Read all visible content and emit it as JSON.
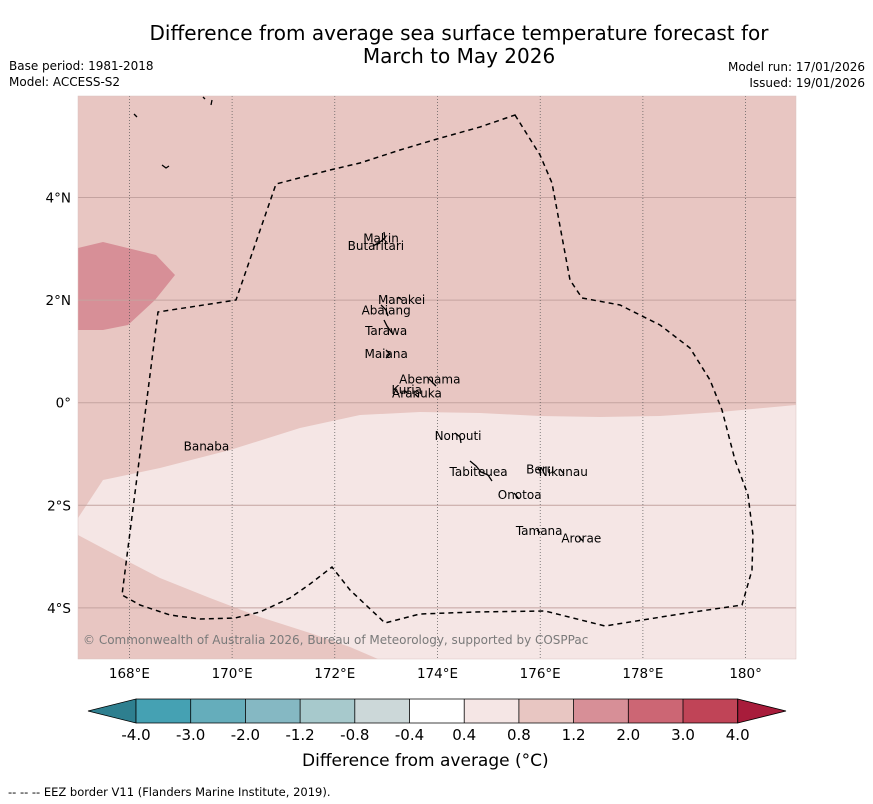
{
  "title_line1": "Difference from average sea surface temperature forecast for",
  "title_line2": "March to May 2026",
  "base_period": "Base period: 1981-2018",
  "model": "Model: ACCESS-S2",
  "model_run": "Model run: 17/01/2026",
  "issued": "Issued: 19/01/2026",
  "copyright": "© Commonwealth of Australia 2026, Bureau of Meteorology, supported by COSPPac",
  "lon_ticks": [
    "168°E",
    "170°E",
    "172°E",
    "174°E",
    "176°E",
    "178°E",
    "180°"
  ],
  "lat_ticks": [
    "4°N",
    "2°N",
    "0°",
    "2°S",
    "4°S"
  ],
  "islands": [
    {
      "name": "Makin",
      "lon": 172.9,
      "lat": 3.2
    },
    {
      "name": "Butaritari",
      "lon": 172.8,
      "lat": 3.05
    },
    {
      "name": "Marakei",
      "lon": 173.3,
      "lat": 2.0
    },
    {
      "name": "Abaiang",
      "lon": 173.0,
      "lat": 1.8
    },
    {
      "name": "Tarawa",
      "lon": 173.0,
      "lat": 1.4
    },
    {
      "name": "Maiana",
      "lon": 173.0,
      "lat": 0.95
    },
    {
      "name": "Abemama",
      "lon": 173.85,
      "lat": 0.45
    },
    {
      "name": "Kuria",
      "lon": 173.4,
      "lat": 0.25
    },
    {
      "name": "Aranuka",
      "lon": 173.6,
      "lat": 0.18
    },
    {
      "name": "Nonouti",
      "lon": 174.4,
      "lat": -0.65
    },
    {
      "name": "Banaba",
      "lon": 169.5,
      "lat": -0.85
    },
    {
      "name": "Tabiteuea",
      "lon": 174.8,
      "lat": -1.35
    },
    {
      "name": "Beru",
      "lon": 176.0,
      "lat": -1.3
    },
    {
      "name": "Nikunau",
      "lon": 176.45,
      "lat": -1.35
    },
    {
      "name": "Onotoa",
      "lon": 175.6,
      "lat": -1.8
    },
    {
      "name": "Tamana",
      "lon": 175.98,
      "lat": -2.5
    },
    {
      "name": "Arorae",
      "lon": 176.8,
      "lat": -2.65
    }
  ],
  "colorbar": {
    "tick_labels": [
      "-4.0",
      "-3.0",
      "-2.0",
      "-1.2",
      "-0.8",
      "-0.4",
      "0.4",
      "0.8",
      "1.2",
      "2.0",
      "3.0",
      "4.0"
    ],
    "colors": [
      "#45a1b3",
      "#65adbb",
      "#85b8c3",
      "#a7c9cc",
      "#ccd8d9",
      "#ffffff",
      "#f5e6e5",
      "#e8c6c2",
      "#d78f97",
      "#cc6674",
      "#c04457"
    ],
    "under_color": "#2e7f8f",
    "over_color": "#a81c3b",
    "title": "Difference from average (°C)"
  },
  "fill_colors": {
    "warm_light": "#e8c6c2",
    "neutral": "#f5e6e5",
    "warm_medium": "#d78f97"
  },
  "footnote": "--  --  -- EEZ border V11 (Flanders Marine Institute, 2019)."
}
